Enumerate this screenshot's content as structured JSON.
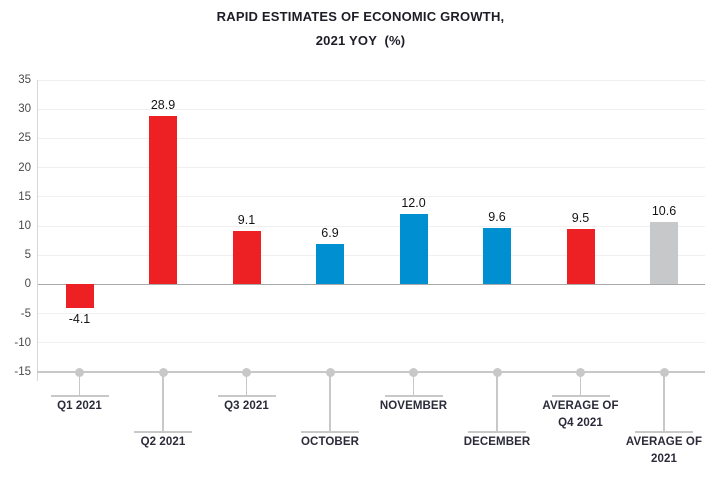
{
  "title": {
    "line1": "RAPID ESTIMATES OF ECONOMIC GROWTH,",
    "line2": "2021 YOY  (%)"
  },
  "colors": {
    "red": "#ED2024",
    "blue": "#0090D2",
    "gray": "#C7C8CA",
    "grid": "#F0F0F1",
    "zero_line": "#A9A9A9",
    "axis": "#D6D6D6",
    "timeline": "#C8C8C8",
    "title_text": "#1D1D27",
    "label_text": "#2B2B3A",
    "tick_text": "#4A4A4A",
    "value_text": "#141414"
  },
  "chart_data": {
    "type": "bar",
    "title": "RAPID ESTIMATES OF ECONOMIC GROWTH, 2021 YOY (%)",
    "categories": [
      [
        "Q1 2021"
      ],
      [
        "Q2 2021"
      ],
      [
        "Q3 2021"
      ],
      [
        "OCTOBER"
      ],
      [
        "NOVEMBER"
      ],
      [
        "DECEMBER"
      ],
      [
        "AVERAGE OF",
        "Q4 2021"
      ],
      [
        "AVERAGE OF",
        "2021"
      ]
    ],
    "values": [
      -4.1,
      28.9,
      9.1,
      6.9,
      12.0,
      9.6,
      9.5,
      10.6
    ],
    "value_labels": [
      "-4.1",
      "28.9",
      "9.1",
      "6.9",
      "12.0",
      "9.6",
      "9.5",
      "10.6"
    ],
    "bar_colors": [
      "red",
      "red",
      "red",
      "blue",
      "blue",
      "blue",
      "red",
      "gray"
    ],
    "xlabel": "",
    "ylabel": "",
    "ylim": [
      -15,
      35
    ],
    "yticks": [
      35,
      30,
      25,
      20,
      15,
      10,
      5,
      0,
      -5,
      -10,
      -15
    ],
    "grid": true,
    "legend": false
  }
}
